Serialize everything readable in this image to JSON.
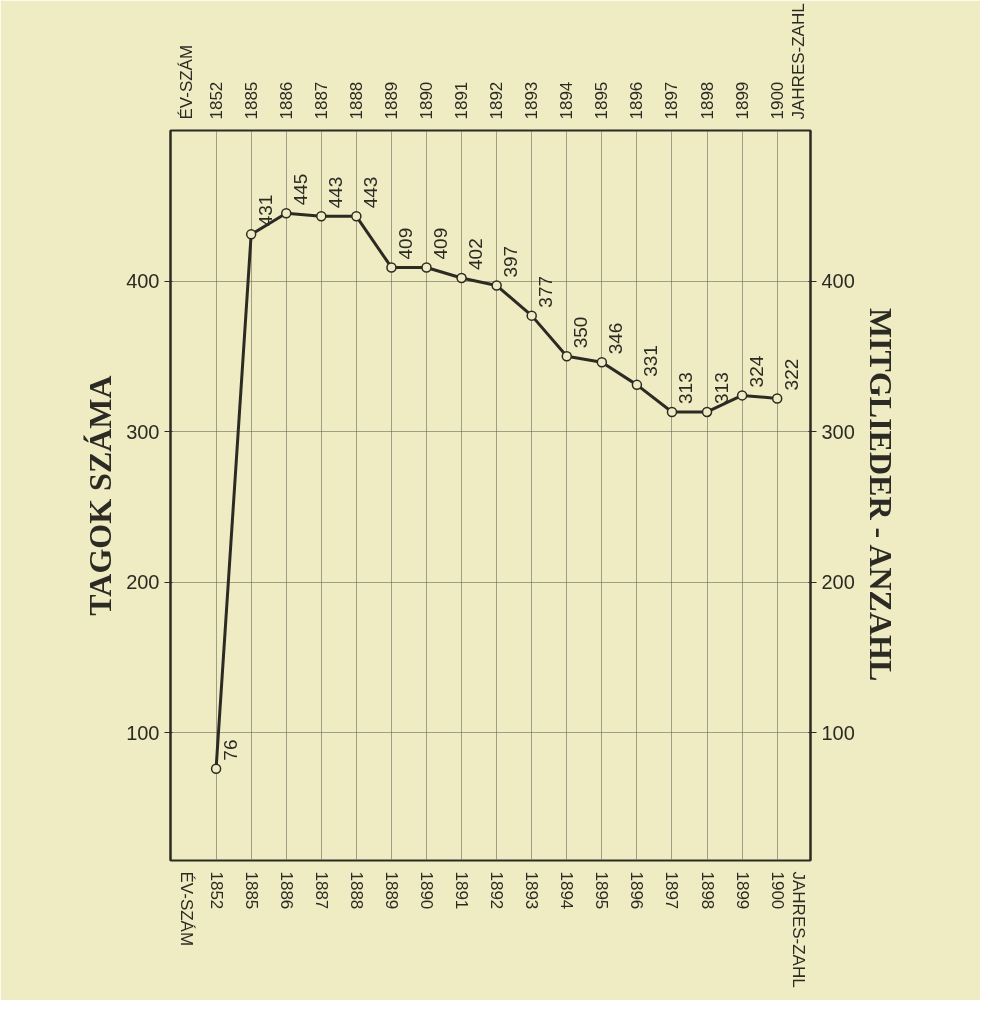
{
  "chart_data": {
    "type": "line",
    "ylabel": "TAGOK SZÁMA",
    "y2label": "MITGLIEDER - ANZAHL",
    "categories": [
      "1852",
      "1885",
      "1886",
      "1887",
      "1888",
      "1889",
      "1890",
      "1891",
      "1892",
      "1893",
      "1894",
      "1895",
      "1896",
      "1897",
      "1898",
      "1899",
      "1900"
    ],
    "series": [
      {
        "color": "#2b2b24",
        "values": [
          76,
          431,
          445,
          443,
          443,
          409,
          409,
          402,
          397,
          377,
          350,
          346,
          331,
          313,
          313,
          324,
          322
        ]
      }
    ],
    "ylim": [
      15,
      500
    ],
    "yticks": [
      100,
      200,
      300,
      400
    ],
    "y2lim": [
      15,
      500
    ],
    "y2ticks": [
      100,
      200,
      300,
      400
    ],
    "annotations": [
      "ÉV-SZÁM",
      "JAHRES-ZAHL",
      "ÉV-SZÁM",
      "JAHRES-ZAHL"
    ],
    "data_labels": true,
    "grid": true,
    "marker": "circle",
    "line_style": "solid"
  }
}
